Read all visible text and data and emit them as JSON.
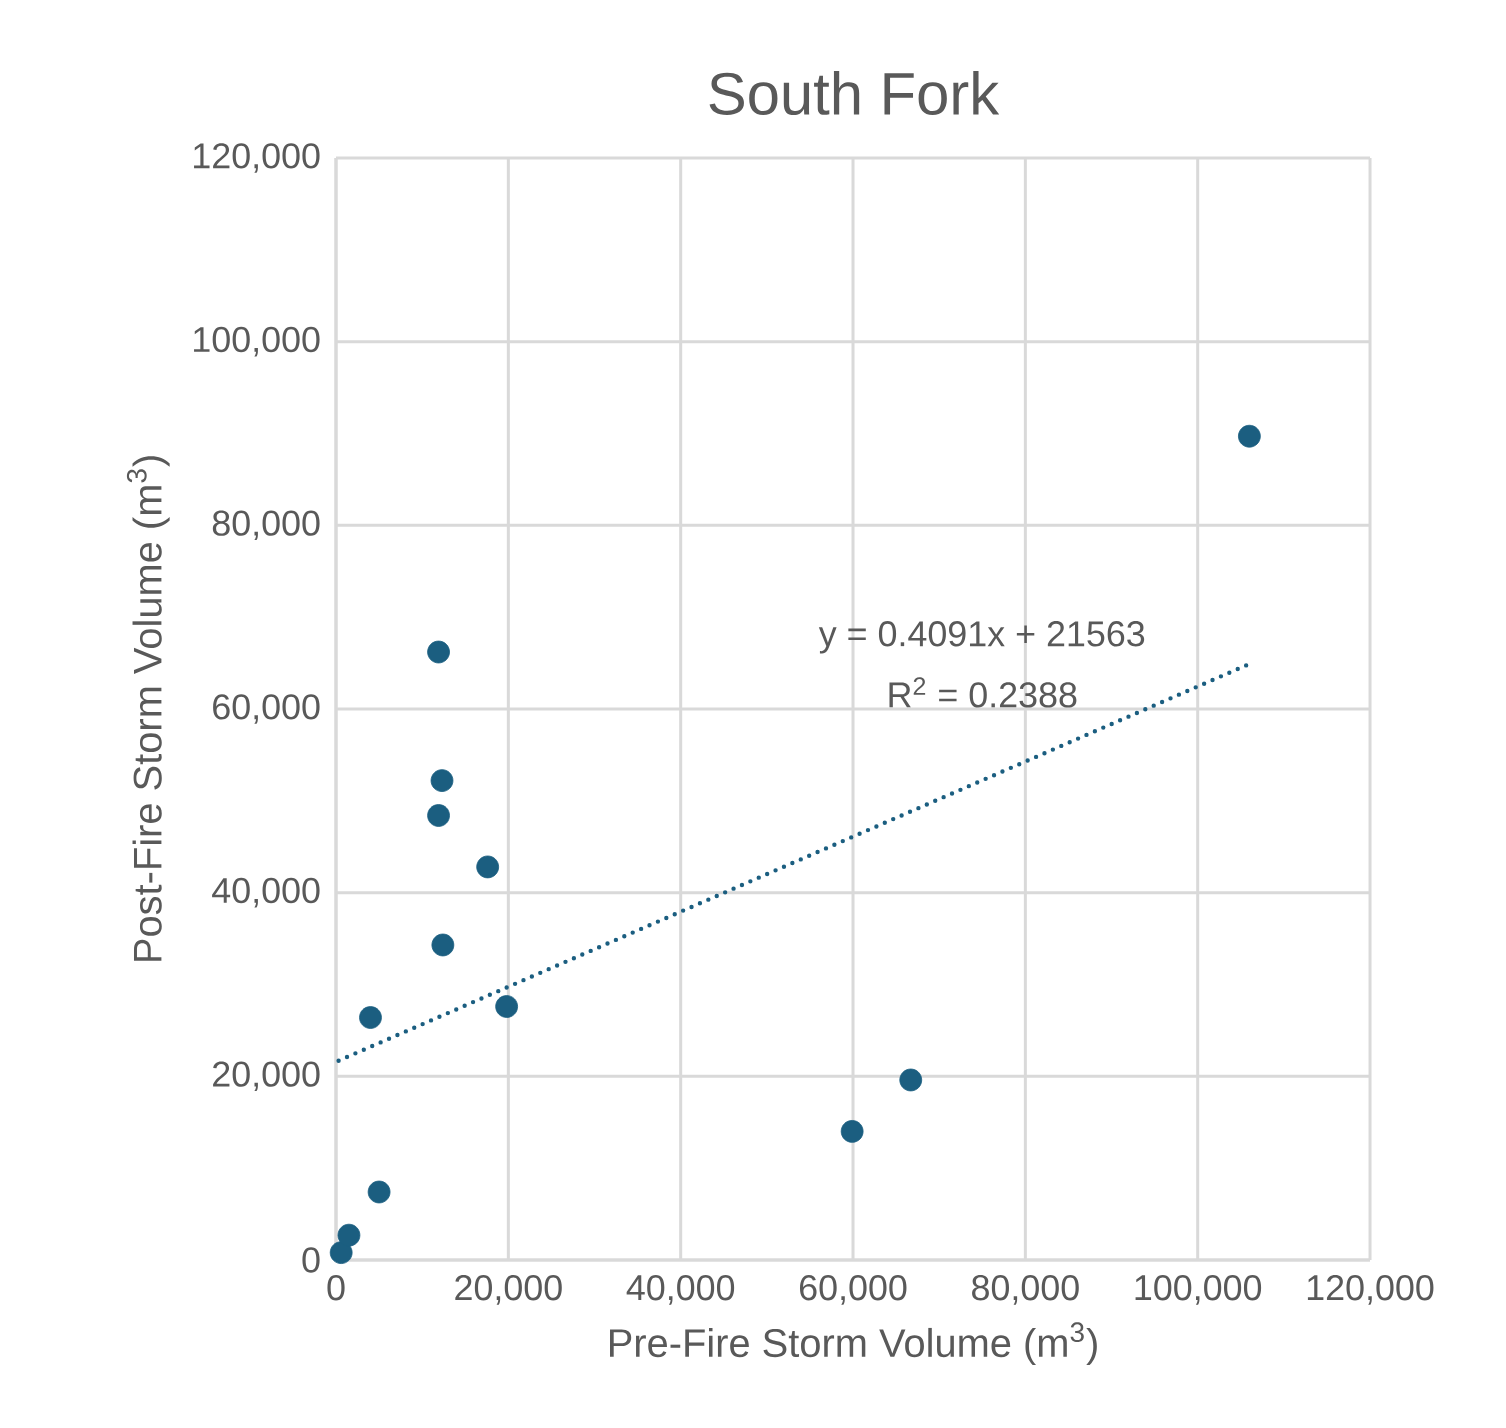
{
  "chart_data": {
    "type": "scatter",
    "title": "South Fork",
    "xlabel": "Pre-Fire Storm Volume (m$^{3}$)",
    "ylabel": "Post-Fire Storm Volume (m$^{3}$)",
    "xlim": [
      0,
      120000
    ],
    "ylim": [
      0,
      120000
    ],
    "xticks": [
      0,
      {
        "value": 20000,
        "label": "20,000"
      },
      {
        "value": 40000,
        "label": "40,000"
      },
      {
        "value": 60000,
        "label": "60,000"
      },
      {
        "value": 80000,
        "label": "80,000"
      },
      {
        "value": 100000,
        "label": "100,000"
      },
      {
        "value": 120000,
        "label": "120,000"
      }
    ],
    "yticks": [
      0,
      {
        "value": 20000,
        "label": "20,000"
      },
      {
        "value": 40000,
        "label": "40,000"
      },
      {
        "value": 60000,
        "label": "60,000"
      },
      {
        "value": 80000,
        "label": "80,000"
      },
      {
        "value": 100000,
        "label": "100,000"
      },
      {
        "value": 120000,
        "label": "120,000"
      }
    ],
    "grid": true,
    "series": [
      {
        "marker": "circle",
        "color": "#1b5e80",
        "x": [
          600,
          1500,
          5000,
          4000,
          11900,
          12300,
          11900,
          17600,
          12400,
          19800,
          59900,
          66700,
          106000
        ],
        "values": [
          800,
          2700,
          7400,
          26400,
          66200,
          52200,
          48400,
          42800,
          34300,
          27600,
          14000,
          19600,
          89700
        ]
      },
      {
        "type": "line",
        "marker": "none",
        "line_style": "dotted",
        "color": "#1b5e80",
        "x": [
          300,
          106000
        ],
        "values": [
          21700,
          64900
        ]
      }
    ],
    "annotations": [
      "y = 0.4091x + 21563",
      "R$^{2}$ = 0.2388"
    ]
  }
}
